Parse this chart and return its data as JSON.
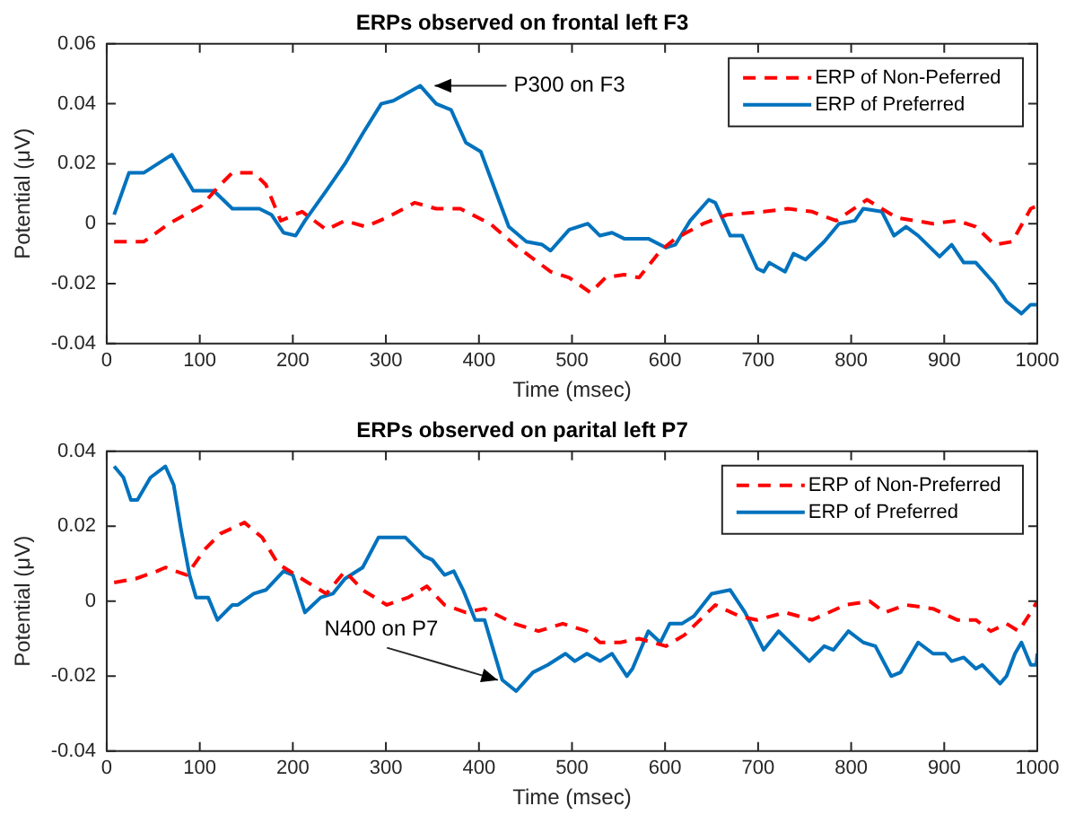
{
  "chart_data": [
    {
      "type": "line",
      "title": "ERPs observed on frontal left F3",
      "xlabel": "Time (msec)",
      "ylabel": "Potential (μV)",
      "xlim": [
        0,
        1000
      ],
      "xticks": [
        0,
        100,
        200,
        300,
        400,
        500,
        600,
        700,
        800,
        900,
        1000
      ],
      "ylim": [
        -0.04,
        0.06
      ],
      "yticks": [
        -0.04,
        -0.02,
        0,
        0.02,
        0.04,
        0.06
      ],
      "grid": false,
      "legend": "top right",
      "marker": "none",
      "annotations": [
        {
          "text": "P300 on F3",
          "x": 337,
          "y": 0.046
        }
      ],
      "series": [
        {
          "name": "ERP of Non-Peferred",
          "color": "#ff0000",
          "line_style": "dashed",
          "x": [
            8,
            40,
            67,
            102,
            119,
            135,
            158,
            171,
            187,
            210,
            236,
            256,
            278,
            301,
            331,
            354,
            380,
            412,
            438,
            477,
            497,
            520,
            536,
            556,
            572,
            595,
            611,
            641,
            667,
            706,
            732,
            758,
            784,
            817,
            849,
            888,
            914,
            934,
            954,
            973,
            993,
            1000
          ],
          "values": [
            -0.006,
            -0.006,
            0,
            0.006,
            0.012,
            0.017,
            0.017,
            0.013,
            0.001,
            0.004,
            -0.002,
            0.001,
            -0.001,
            0.002,
            0.007,
            0.005,
            0.005,
            0,
            -0.007,
            -0.016,
            -0.018,
            -0.023,
            -0.018,
            -0.017,
            -0.018,
            -0.009,
            -0.005,
            0,
            0.003,
            0.004,
            0.005,
            0.004,
            0.001,
            0.008,
            0.002,
            0,
            0.001,
            -0.001,
            -0.007,
            -0.006,
            0.005,
            0.006
          ]
        },
        {
          "name": "ERP of Preferred",
          "color": "#0072bd",
          "line_style": "solid",
          "x": [
            8,
            24,
            40,
            70,
            93,
            115,
            135,
            164,
            177,
            190,
            203,
            213,
            236,
            256,
            275,
            295,
            308,
            337,
            354,
            370,
            386,
            402,
            432,
            451,
            468,
            477,
            497,
            517,
            530,
            543,
            556,
            582,
            601,
            611,
            627,
            647,
            654,
            670,
            683,
            699,
            706,
            712,
            729,
            738,
            751,
            771,
            787,
            804,
            813,
            833,
            846,
            859,
            872,
            895,
            908,
            921,
            934,
            954,
            967,
            983,
            993,
            1000
          ],
          "values": [
            0.003,
            0.017,
            0.017,
            0.023,
            0.011,
            0.011,
            0.005,
            0.005,
            0.003,
            -0.003,
            -0.004,
            0.001,
            0.011,
            0.02,
            0.03,
            0.04,
            0.041,
            0.046,
            0.04,
            0.038,
            0.027,
            0.024,
            -0.001,
            -0.006,
            -0.007,
            -0.009,
            -0.002,
            0,
            -0.004,
            -0.003,
            -0.005,
            -0.005,
            -0.008,
            -0.007,
            0.001,
            0.008,
            0.007,
            -0.004,
            -0.004,
            -0.015,
            -0.016,
            -0.013,
            -0.016,
            -0.01,
            -0.012,
            -0.006,
            0,
            0.001,
            0.005,
            0.004,
            -0.004,
            -0.001,
            -0.004,
            -0.011,
            -0.007,
            -0.013,
            -0.013,
            -0.02,
            -0.026,
            -0.03,
            -0.027,
            -0.027
          ]
        }
      ]
    },
    {
      "type": "line",
      "title": "ERPs observed on parital left P7",
      "xlabel": "Time (msec)",
      "ylabel": "Potential (μV)",
      "xlim": [
        0,
        1000
      ],
      "xticks": [
        0,
        100,
        200,
        300,
        400,
        500,
        600,
        700,
        800,
        900,
        1000
      ],
      "ylim": [
        -0.04,
        0.04
      ],
      "yticks": [
        -0.04,
        -0.02,
        0,
        0.02,
        0.04
      ],
      "grid": false,
      "legend": "top right",
      "marker": "none",
      "annotations": [
        {
          "text": "N400 on P7",
          "x": 430,
          "y": -0.022
        }
      ],
      "series": [
        {
          "name": "ERP of Non-Preferred",
          "color": "#ff0000",
          "line_style": "dashed",
          "x": [
            8,
            31,
            54,
            63,
            86,
            106,
            122,
            148,
            167,
            184,
            203,
            216,
            236,
            256,
            275,
            301,
            324,
            344,
            363,
            386,
            406,
            438,
            464,
            490,
            516,
            530,
            552,
            572,
            601,
            621,
            654,
            680,
            699,
            729,
            758,
            794,
            820,
            836,
            859,
            888,
            914,
            934,
            950,
            967,
            980,
            993,
            1000
          ],
          "values": [
            0.005,
            0.006,
            0.008,
            0.009,
            0.007,
            0.014,
            0.018,
            0.021,
            0.017,
            0.01,
            0.007,
            0.005,
            0.002,
            0.008,
            0.003,
            -0.001,
            0.001,
            0.004,
            -0.001,
            -0.003,
            -0.002,
            -0.006,
            -0.008,
            -0.006,
            -0.008,
            -0.011,
            -0.011,
            -0.01,
            -0.012,
            -0.009,
            -0.001,
            -0.004,
            -0.005,
            -0.003,
            -0.005,
            -0.001,
            0,
            -0.003,
            -0.001,
            -0.002,
            -0.005,
            -0.005,
            -0.008,
            -0.006,
            -0.008,
            -0.003,
            0
          ]
        },
        {
          "name": "ERP of Preferred",
          "color": "#0072bd",
          "line_style": "solid",
          "x": [
            8,
            18,
            26,
            33,
            47,
            63,
            72,
            80,
            89,
            96,
            109,
            119,
            135,
            141,
            158,
            171,
            190,
            200,
            213,
            230,
            243,
            256,
            275,
            292,
            308,
            321,
            341,
            350,
            363,
            373,
            383,
            396,
            406,
            425,
            440,
            458,
            474,
            493,
            503,
            516,
            530,
            543,
            559,
            565,
            582,
            595,
            605,
            618,
            631,
            650,
            670,
            686,
            706,
            722,
            755,
            771,
            781,
            797,
            813,
            826,
            843,
            853,
            872,
            888,
            901,
            908,
            921,
            934,
            941,
            960,
            967,
            976,
            983,
            993,
            999,
            1000
          ],
          "values": [
            0.036,
            0.033,
            0.027,
            0.027,
            0.033,
            0.036,
            0.031,
            0.019,
            0.007,
            0.001,
            0.001,
            -0.005,
            -0.001,
            -0.001,
            0.002,
            0.003,
            0.008,
            0.007,
            -0.003,
            0.001,
            0.002,
            0.006,
            0.009,
            0.017,
            0.017,
            0.017,
            0.012,
            0.011,
            0.007,
            0.008,
            0.003,
            -0.005,
            -0.005,
            -0.021,
            -0.024,
            -0.019,
            -0.017,
            -0.014,
            -0.016,
            -0.014,
            -0.016,
            -0.014,
            -0.02,
            -0.018,
            -0.008,
            -0.011,
            -0.006,
            -0.006,
            -0.004,
            0.002,
            0.003,
            -0.003,
            -0.013,
            -0.008,
            -0.016,
            -0.012,
            -0.013,
            -0.008,
            -0.011,
            -0.012,
            -0.02,
            -0.019,
            -0.011,
            -0.014,
            -0.014,
            -0.016,
            -0.015,
            -0.018,
            -0.017,
            -0.022,
            -0.02,
            -0.014,
            -0.011,
            -0.017,
            -0.017,
            -0.014
          ]
        }
      ]
    }
  ]
}
